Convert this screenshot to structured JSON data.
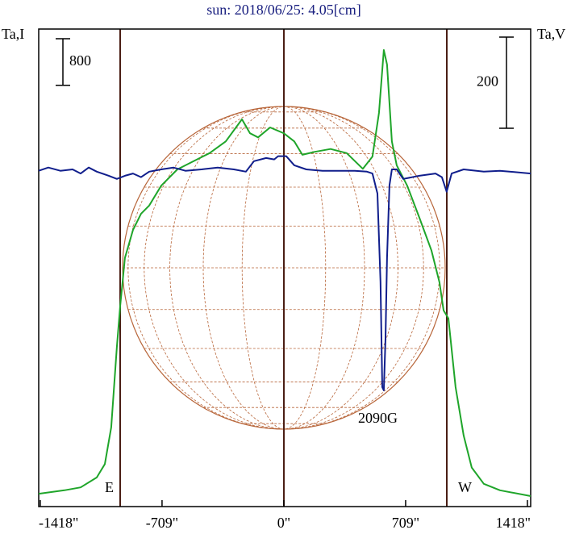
{
  "chart_data": {
    "type": "line",
    "title": "sun: 2018/06/25: 4.05[cm]",
    "y_label": "Ta,I",
    "y2_label": "Ta,V",
    "xlim": [
      -1427,
      1437
    ],
    "xticks": [
      {
        "value": -1418,
        "label": "-1418\""
      },
      {
        "value": -709,
        "label": "-709\""
      },
      {
        "value": 0,
        "label": "0\""
      },
      {
        "value": 709,
        "label": "709\""
      },
      {
        "value": 1418,
        "label": "1418\""
      }
    ],
    "ylim": [
      -200,
      8000
    ],
    "y2lim": [
      -735,
      313
    ],
    "scale_bars": [
      {
        "value": 800,
        "axis": "y"
      },
      {
        "value": 200,
        "axis": "y2"
      }
    ],
    "annotations": [
      "E",
      "W",
      "2090G"
    ],
    "series": [
      {
        "color": "#1fa52a",
        "x": [
          -1427,
          -1277,
          -1183,
          -1089,
          -1042,
          -1005,
          -972,
          -953,
          -925,
          -878,
          -831,
          -784,
          -714,
          -620,
          -526,
          -432,
          -338,
          -244,
          -197,
          -150,
          -80,
          0,
          61,
          108,
          178,
          272,
          366,
          460,
          516,
          554,
          582,
          601,
          629,
          657,
          718,
          789,
          859,
          906,
          930,
          958,
          1000,
          1047,
          1094,
          1164,
          1258,
          1437
        ],
        "values": [
          20,
          80,
          130,
          300,
          530,
          1160,
          2540,
          3240,
          4070,
          4550,
          4830,
          4970,
          5310,
          5590,
          5730,
          5870,
          6070,
          6450,
          6210,
          6140,
          6310,
          6210,
          6070,
          5840,
          5890,
          5940,
          5870,
          5600,
          5810,
          6560,
          7640,
          7390,
          6070,
          5660,
          5310,
          4760,
          4200,
          3650,
          3170,
          3030,
          1850,
          1020,
          470,
          190,
          80,
          -20
        ]
      },
      {
        "color": "#101e8c",
        "axis": "y2",
        "x": [
          -1427,
          -1371,
          -1301,
          -1230,
          -1183,
          -1136,
          -1089,
          -1019,
          -972,
          -925,
          -878,
          -831,
          -784,
          -714,
          -643,
          -573,
          -479,
          -385,
          -291,
          -221,
          -174,
          -103,
          -56,
          -33,
          14,
          61,
          131,
          225,
          319,
          413,
          484,
          516,
          545,
          563,
          573,
          582,
          592,
          601,
          615,
          629,
          657,
          695,
          789,
          883,
          920,
          948,
          977,
          1047,
          1164,
          1258,
          1437
        ],
        "values": [
          2,
          9,
          2,
          5,
          -4,
          9,
          0,
          -9,
          -16,
          -9,
          -4,
          -12,
          0,
          5,
          9,
          2,
          5,
          9,
          5,
          0,
          23,
          30,
          27,
          34,
          34,
          14,
          5,
          2,
          2,
          2,
          0,
          -4,
          -48,
          -242,
          -473,
          -480,
          -366,
          -189,
          -30,
          5,
          5,
          -16,
          -9,
          -4,
          -12,
          -44,
          -4,
          5,
          0,
          2,
          -4
        ]
      }
    ]
  }
}
